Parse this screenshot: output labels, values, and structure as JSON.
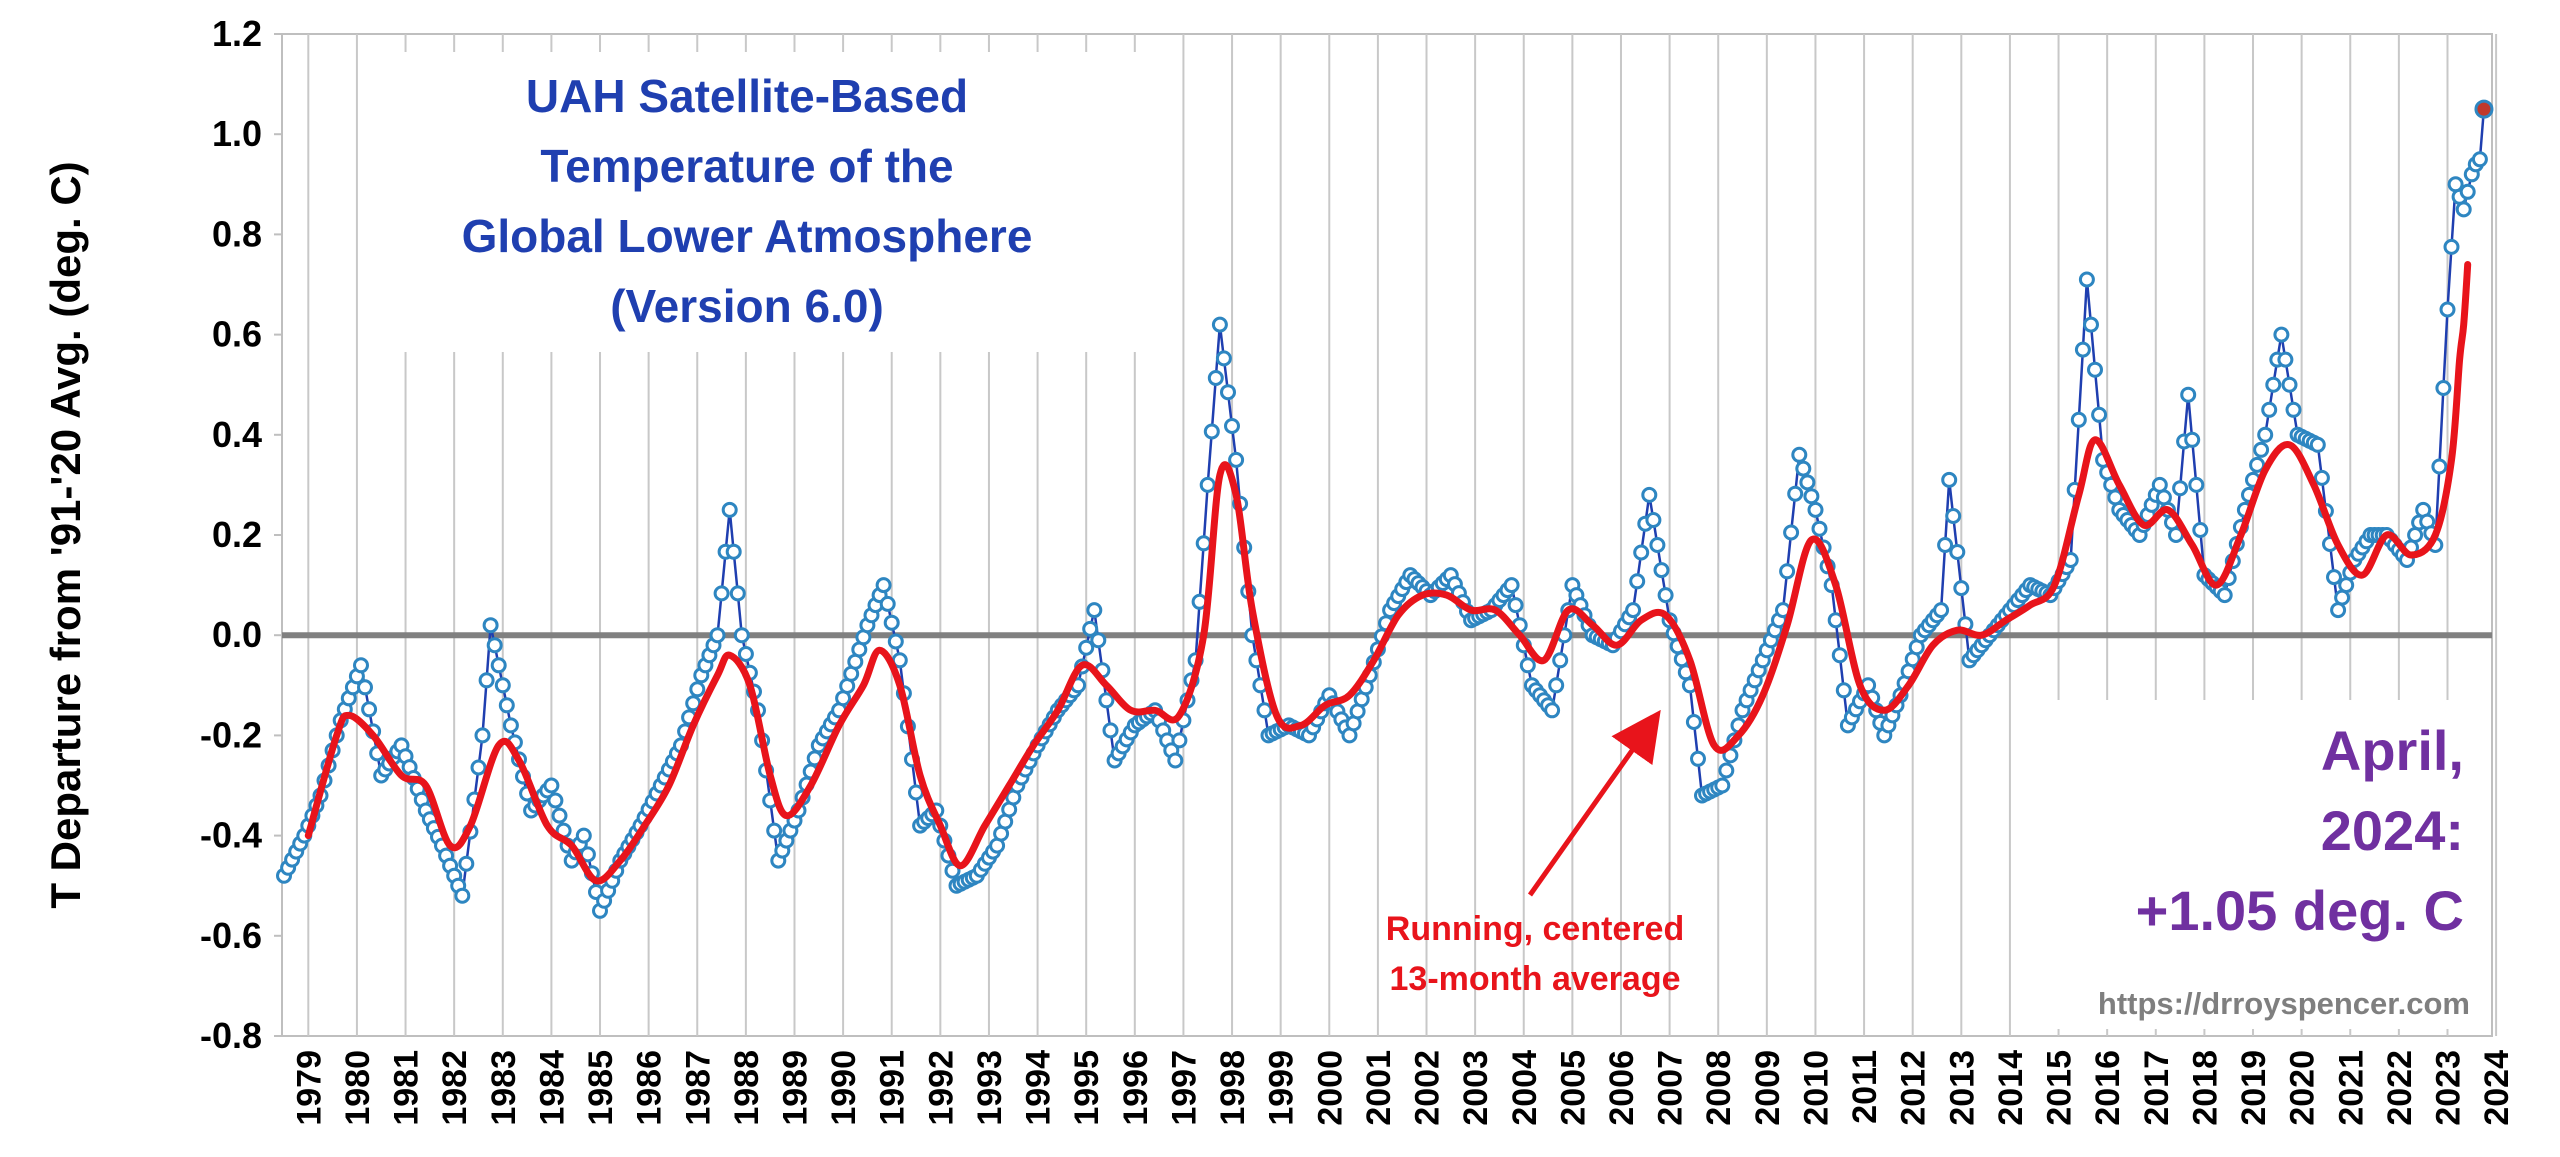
{
  "chart_data": {
    "type": "line",
    "title_lines": [
      "UAH Satellite-Based",
      "Temperature of the",
      "Global Lower Atmosphere",
      "(Version 6.0)"
    ],
    "ylabel": "T Departure from '91-'20 Avg. (deg. C)",
    "xlabel": "",
    "ylim": [
      -0.8,
      1.2
    ],
    "y_ticks": [
      "1.2",
      "1.0",
      "0.8",
      "0.6",
      "0.4",
      "0.2",
      "0.0",
      "-0.2",
      "-0.4",
      "-0.6",
      "-0.8"
    ],
    "x_ticks": [
      "1979",
      "1980",
      "1981",
      "1982",
      "1983",
      "1984",
      "1985",
      "1986",
      "1987",
      "1988",
      "1989",
      "1990",
      "1991",
      "1992",
      "1993",
      "1994",
      "1995",
      "1996",
      "1997",
      "1998",
      "1999",
      "2000",
      "2001",
      "2002",
      "2003",
      "2004",
      "2005",
      "2006",
      "2007",
      "2008",
      "2009",
      "2010",
      "2011",
      "2012",
      "2013",
      "2014",
      "2015",
      "2016",
      "2017",
      "2018",
      "2019",
      "2020",
      "2021",
      "2022",
      "2023",
      "2024"
    ],
    "x_range": [
      "1979-01",
      "2024-04"
    ],
    "grid": "vertical",
    "colors": {
      "monthly": "#1f3fb0",
      "marker": "#2e86c1",
      "running": "#e8141b",
      "zero_line": "#808080",
      "latest": "#c0392b",
      "callout": "#7030a0"
    },
    "monthly_anchors": [
      [
        "1979-01",
        -0.48
      ],
      [
        "1979-06",
        -0.4
      ],
      [
        "1979-10",
        -0.32
      ],
      [
        "1980-03",
        -0.17
      ],
      [
        "1980-08",
        -0.06
      ],
      [
        "1981-01",
        -0.28
      ],
      [
        "1981-06",
        -0.22
      ],
      [
        "1981-12",
        -0.35
      ],
      [
        "1982-04",
        -0.42
      ],
      [
        "1982-09",
        -0.52
      ],
      [
        "1983-02",
        -0.2
      ],
      [
        "1983-04",
        0.02
      ],
      [
        "1983-09",
        -0.18
      ],
      [
        "1984-02",
        -0.35
      ],
      [
        "1984-07",
        -0.3
      ],
      [
        "1984-12",
        -0.45
      ],
      [
        "1985-03",
        -0.4
      ],
      [
        "1985-07",
        -0.55
      ],
      [
        "1985-12",
        -0.45
      ],
      [
        "1986-05",
        -0.38
      ],
      [
        "1986-10",
        -0.3
      ],
      [
        "1987-03",
        -0.22
      ],
      [
        "1987-08",
        -0.08
      ],
      [
        "1987-12",
        0.0
      ],
      [
        "1988-03",
        0.25
      ],
      [
        "1988-06",
        0.0
      ],
      [
        "1988-10",
        -0.15
      ],
      [
        "1989-03",
        -0.45
      ],
      [
        "1989-08",
        -0.35
      ],
      [
        "1990-01",
        -0.22
      ],
      [
        "1990-06",
        -0.15
      ],
      [
        "1991-01",
        0.02
      ],
      [
        "1991-05",
        0.1
      ],
      [
        "1991-09",
        -0.05
      ],
      [
        "1992-02",
        -0.38
      ],
      [
        "1992-06",
        -0.35
      ],
      [
        "1992-11",
        -0.5
      ],
      [
        "1993-04",
        -0.48
      ],
      [
        "1993-09",
        -0.42
      ],
      [
        "1994-02",
        -0.3
      ],
      [
        "1994-07",
        -0.22
      ],
      [
        "1994-12",
        -0.15
      ],
      [
        "1995-05",
        -0.1
      ],
      [
        "1995-09",
        0.05
      ],
      [
        "1996-02",
        -0.25
      ],
      [
        "1996-07",
        -0.18
      ],
      [
        "1996-12",
        -0.15
      ],
      [
        "1997-05",
        -0.25
      ],
      [
        "1997-10",
        -0.05
      ],
      [
        "1998-01",
        0.3
      ],
      [
        "1998-04",
        0.62
      ],
      [
        "1998-08",
        0.35
      ],
      [
        "1998-12",
        0.0
      ],
      [
        "1999-04",
        -0.2
      ],
      [
        "1999-09",
        -0.18
      ],
      [
        "2000-02",
        -0.2
      ],
      [
        "2000-07",
        -0.12
      ],
      [
        "2000-12",
        -0.2
      ],
      [
        "2001-05",
        -0.08
      ],
      [
        "2001-10",
        0.05
      ],
      [
        "2002-03",
        0.12
      ],
      [
        "2002-08",
        0.08
      ],
      [
        "2003-01",
        0.12
      ],
      [
        "2003-06",
        0.03
      ],
      [
        "2003-11",
        0.05
      ],
      [
        "2004-04",
        0.1
      ],
      [
        "2004-09",
        -0.1
      ],
      [
        "2005-02",
        -0.15
      ],
      [
        "2005-07",
        0.1
      ],
      [
        "2005-12",
        0.0
      ],
      [
        "2006-05",
        -0.02
      ],
      [
        "2006-10",
        0.05
      ],
      [
        "2007-02",
        0.28
      ],
      [
        "2007-07",
        0.03
      ],
      [
        "2007-12",
        -0.1
      ],
      [
        "2008-03",
        -0.32
      ],
      [
        "2008-08",
        -0.3
      ],
      [
        "2009-01",
        -0.15
      ],
      [
        "2009-06",
        -0.05
      ],
      [
        "2009-11",
        0.05
      ],
      [
        "2010-03",
        0.36
      ],
      [
        "2010-07",
        0.25
      ],
      [
        "2010-11",
        0.1
      ],
      [
        "2011-03",
        -0.18
      ],
      [
        "2011-08",
        -0.1
      ],
      [
        "2011-12",
        -0.2
      ],
      [
        "2012-04",
        -0.12
      ],
      [
        "2012-09",
        0.0
      ],
      [
        "2013-02",
        0.05
      ],
      [
        "2013-04",
        0.31
      ],
      [
        "2013-09",
        -0.05
      ],
      [
        "2014-02",
        0.0
      ],
      [
        "2014-07",
        0.05
      ],
      [
        "2014-12",
        0.1
      ],
      [
        "2015-05",
        0.08
      ],
      [
        "2015-10",
        0.15
      ],
      [
        "2016-02",
        0.71
      ],
      [
        "2016-06",
        0.35
      ],
      [
        "2016-10",
        0.25
      ],
      [
        "2017-03",
        0.2
      ],
      [
        "2017-08",
        0.3
      ],
      [
        "2017-12",
        0.2
      ],
      [
        "2018-03",
        0.48
      ],
      [
        "2018-07",
        0.12
      ],
      [
        "2018-12",
        0.08
      ],
      [
        "2019-05",
        0.25
      ],
      [
        "2019-10",
        0.4
      ],
      [
        "2020-02",
        0.6
      ],
      [
        "2020-06",
        0.4
      ],
      [
        "2020-11",
        0.38
      ],
      [
        "2021-04",
        0.05
      ],
      [
        "2021-08",
        0.15
      ],
      [
        "2021-12",
        0.2
      ],
      [
        "2022-04",
        0.2
      ],
      [
        "2022-09",
        0.15
      ],
      [
        "2023-01",
        0.25
      ],
      [
        "2023-04",
        0.18
      ],
      [
        "2023-07",
        0.65
      ],
      [
        "2023-09",
        0.9
      ],
      [
        "2023-11",
        0.85
      ],
      [
        "2024-01",
        0.92
      ],
      [
        "2024-02",
        0.94
      ],
      [
        "2024-03",
        0.95
      ],
      [
        "2024-04",
        1.05
      ]
    ],
    "running_avg_anchors": [
      [
        "1979-07",
        -0.4
      ],
      [
        "1980-02",
        -0.2
      ],
      [
        "1980-05",
        -0.16
      ],
      [
        "1980-11",
        -0.2
      ],
      [
        "1981-06",
        -0.28
      ],
      [
        "1981-12",
        -0.3
      ],
      [
        "1982-06",
        -0.42
      ],
      [
        "1982-11",
        -0.38
      ],
      [
        "1983-06",
        -0.22
      ],
      [
        "1983-11",
        -0.25
      ],
      [
        "1984-06",
        -0.38
      ],
      [
        "1984-12",
        -0.42
      ],
      [
        "1985-06",
        -0.49
      ],
      [
        "1985-12",
        -0.45
      ],
      [
        "1986-06",
        -0.38
      ],
      [
        "1986-12",
        -0.3
      ],
      [
        "1987-06",
        -0.18
      ],
      [
        "1987-12",
        -0.08
      ],
      [
        "1988-03",
        -0.04
      ],
      [
        "1988-08",
        -0.1
      ],
      [
        "1989-01",
        -0.28
      ],
      [
        "1989-05",
        -0.36
      ],
      [
        "1989-11",
        -0.3
      ],
      [
        "1990-06",
        -0.18
      ],
      [
        "1990-12",
        -0.1
      ],
      [
        "1991-04",
        -0.03
      ],
      [
        "1991-09",
        -0.1
      ],
      [
        "1992-02",
        -0.28
      ],
      [
        "1992-07",
        -0.38
      ],
      [
        "1992-12",
        -0.46
      ],
      [
        "1993-06",
        -0.38
      ],
      [
        "1993-12",
        -0.3
      ],
      [
        "1994-06",
        -0.22
      ],
      [
        "1994-12",
        -0.15
      ],
      [
        "1995-06",
        -0.06
      ],
      [
        "1995-12",
        -0.1
      ],
      [
        "1996-06",
        -0.15
      ],
      [
        "1996-12",
        -0.15
      ],
      [
        "1997-06",
        -0.16
      ],
      [
        "1997-12",
        0.0
      ],
      [
        "1998-04",
        0.32
      ],
      [
        "1998-08",
        0.28
      ],
      [
        "1998-12",
        0.05
      ],
      [
        "1999-06",
        -0.16
      ],
      [
        "1999-12",
        -0.18
      ],
      [
        "2000-06",
        -0.14
      ],
      [
        "2000-12",
        -0.12
      ],
      [
        "2001-06",
        -0.05
      ],
      [
        "2001-12",
        0.04
      ],
      [
        "2002-06",
        0.08
      ],
      [
        "2002-12",
        0.08
      ],
      [
        "2003-06",
        0.05
      ],
      [
        "2003-12",
        0.05
      ],
      [
        "2004-06",
        0.0
      ],
      [
        "2004-12",
        -0.05
      ],
      [
        "2005-06",
        0.05
      ],
      [
        "2005-12",
        0.02
      ],
      [
        "2006-06",
        -0.02
      ],
      [
        "2006-12",
        0.03
      ],
      [
        "2007-06",
        0.04
      ],
      [
        "2007-12",
        -0.05
      ],
      [
        "2008-06",
        -0.22
      ],
      [
        "2008-12",
        -0.2
      ],
      [
        "2009-06",
        -0.12
      ],
      [
        "2009-12",
        0.02
      ],
      [
        "2010-06",
        0.19
      ],
      [
        "2010-12",
        0.1
      ],
      [
        "2011-06",
        -0.1
      ],
      [
        "2011-12",
        -0.15
      ],
      [
        "2012-06",
        -0.1
      ],
      [
        "2012-12",
        -0.02
      ],
      [
        "2013-06",
        0.01
      ],
      [
        "2013-12",
        0.0
      ],
      [
        "2014-06",
        0.03
      ],
      [
        "2014-12",
        0.06
      ],
      [
        "2015-06",
        0.1
      ],
      [
        "2015-12",
        0.28
      ],
      [
        "2016-04",
        0.39
      ],
      [
        "2016-10",
        0.3
      ],
      [
        "2017-04",
        0.22
      ],
      [
        "2017-10",
        0.25
      ],
      [
        "2018-04",
        0.18
      ],
      [
        "2018-10",
        0.1
      ],
      [
        "2019-04",
        0.2
      ],
      [
        "2019-10",
        0.33
      ],
      [
        "2020-04",
        0.38
      ],
      [
        "2020-10",
        0.3
      ],
      [
        "2021-04",
        0.18
      ],
      [
        "2021-10",
        0.12
      ],
      [
        "2022-04",
        0.2
      ],
      [
        "2022-10",
        0.16
      ],
      [
        "2023-04",
        0.2
      ],
      [
        "2023-08",
        0.35
      ],
      [
        "2023-10",
        0.55
      ],
      [
        "2023-11",
        0.62
      ],
      [
        "2023-12",
        0.74
      ]
    ],
    "latest_point": {
      "date": "2024-04",
      "value": 1.05
    },
    "callout_lines": [
      "April,",
      "2024:",
      "+1.05 deg. C"
    ],
    "annotation_lines": [
      "Running, centered",
      "13-month average"
    ],
    "credit": "https://drroyspencer.com"
  }
}
